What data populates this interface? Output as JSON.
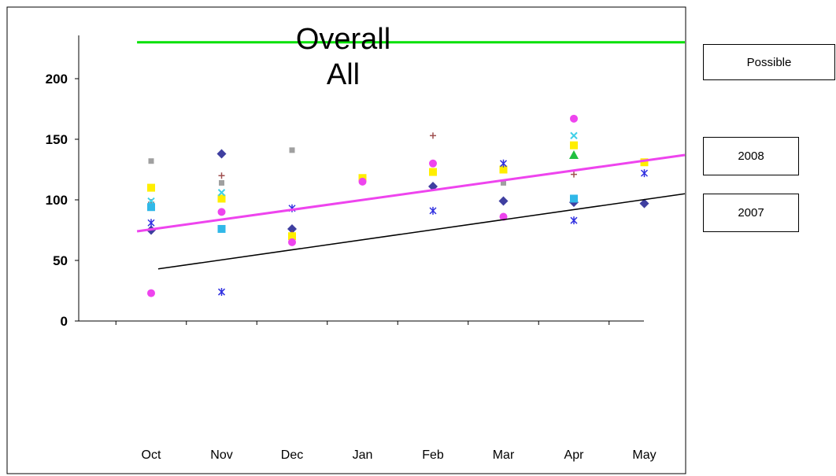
{
  "chart_data": {
    "type": "scatter",
    "title_lines": [
      "Overall",
      "All"
    ],
    "categories": [
      "Oct",
      "Nov",
      "Dec",
      "Jan",
      "Feb",
      "Mar",
      "Apr",
      "May"
    ],
    "y_ticks": [
      "0",
      "50",
      "100",
      "150",
      "200"
    ],
    "ylim": [
      0,
      200
    ],
    "xlabel": "",
    "ylabel": "",
    "grid": false,
    "legend_placement": "right",
    "series": [
      {
        "marker": "diamond",
        "color": "#3f3fa0",
        "points": [
          [
            "Oct",
            75
          ],
          [
            "Nov",
            138
          ],
          [
            "Dec",
            76
          ],
          [
            "Feb",
            111
          ],
          [
            "Mar",
            99
          ],
          [
            "Apr",
            98
          ],
          [
            "May",
            97
          ]
        ]
      },
      {
        "marker": "square-small",
        "color": "#a0a0a0",
        "points": [
          [
            "Oct",
            132
          ],
          [
            "Nov",
            114
          ],
          [
            "Dec",
            141
          ],
          [
            "Mar",
            114
          ]
        ]
      },
      {
        "marker": "plus",
        "color": "#a05050",
        "points": [
          [
            "Oct",
            98
          ],
          [
            "Nov",
            120
          ],
          [
            "Dec",
            72
          ],
          [
            "Feb",
            153
          ],
          [
            "Apr",
            121
          ]
        ]
      },
      {
        "marker": "square",
        "color": "#ffee00",
        "points": [
          [
            "Oct",
            110
          ],
          [
            "Nov",
            101
          ],
          [
            "Dec",
            70
          ],
          [
            "Jan",
            118
          ],
          [
            "Feb",
            123
          ],
          [
            "Mar",
            125
          ],
          [
            "Apr",
            145
          ],
          [
            "May",
            131
          ]
        ]
      },
      {
        "marker": "star",
        "color": "#3030e0",
        "points": [
          [
            "Oct",
            81
          ],
          [
            "Nov",
            24
          ],
          [
            "Dec",
            93
          ],
          [
            "Feb",
            91
          ],
          [
            "Mar",
            130
          ],
          [
            "Apr",
            83
          ],
          [
            "May",
            122
          ]
        ]
      },
      {
        "marker": "x",
        "color": "#40d0e8",
        "points": [
          [
            "Oct",
            99
          ],
          [
            "Nov",
            106
          ],
          [
            "Apr",
            153
          ]
        ]
      },
      {
        "marker": "square",
        "color": "#30b8e8",
        "points": [
          [
            "Oct",
            94
          ],
          [
            "Nov",
            76
          ],
          [
            "Apr",
            101
          ]
        ]
      },
      {
        "marker": "circle",
        "color": "#ee44ee",
        "points": [
          [
            "Oct",
            23
          ],
          [
            "Nov",
            90
          ],
          [
            "Dec",
            65
          ],
          [
            "Jan",
            115
          ],
          [
            "Feb",
            130
          ],
          [
            "Mar",
            86
          ],
          [
            "Apr",
            167
          ]
        ]
      },
      {
        "marker": "triangle",
        "color": "#20c040",
        "points": [
          [
            "Apr",
            137
          ]
        ]
      }
    ],
    "lines": [
      {
        "name": "Possible",
        "color": "#00e000",
        "width": 3,
        "y_start": 230,
        "y_end": 230,
        "x_start": -0.2,
        "x_end": 7.6
      },
      {
        "name": "2008",
        "color": "#ee44ee",
        "width": 3,
        "y_start": 74,
        "y_end": 137,
        "x_start": -0.2,
        "x_end": 7.6
      },
      {
        "name": "2007",
        "color": "#000000",
        "width": 1.5,
        "y_start": 43,
        "y_end": 105,
        "x_start": 0.1,
        "x_end": 7.6
      }
    ],
    "legend": [
      "Possible",
      "2008",
      "2007"
    ]
  }
}
